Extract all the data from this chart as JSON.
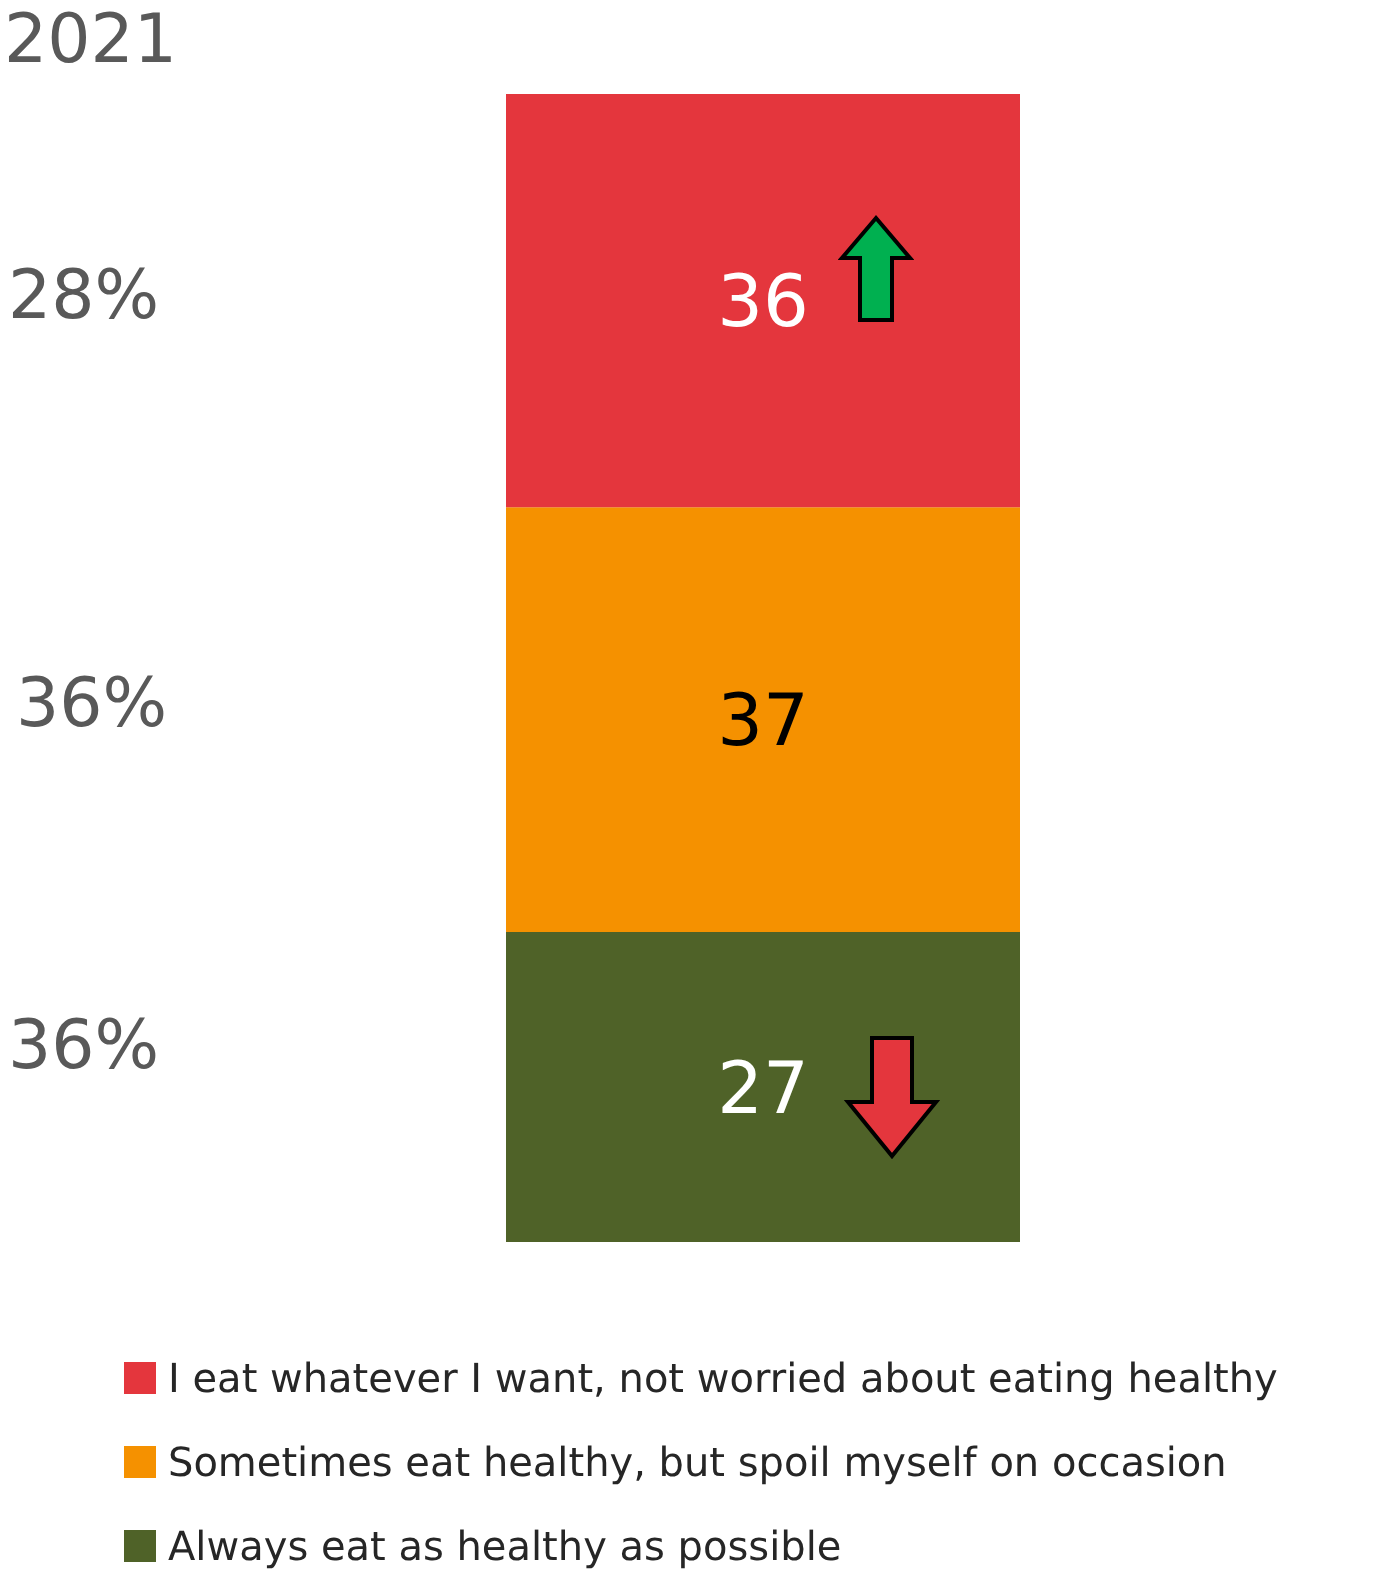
{
  "chart_data": {
    "type": "bar",
    "stacked": true,
    "categories": [
      null
    ],
    "data_labels": true,
    "legend": "bottom",
    "series": [
      {
        "name": "Always eat as healthy as possible",
        "color": "#4f6228",
        "values": [
          27
        ]
      },
      {
        "name": "Sometimes eat healthy, but spoil myself on occasion",
        "color": "#f59100",
        "values": [
          37
        ]
      },
      {
        "name": "I eat whatever I want, not worried about eating healthy",
        "color": "#e4363d",
        "values": [
          36
        ]
      }
    ],
    "annotations": [
      "2021",
      "36%",
      "36%",
      "28%"
    ]
  }
}
